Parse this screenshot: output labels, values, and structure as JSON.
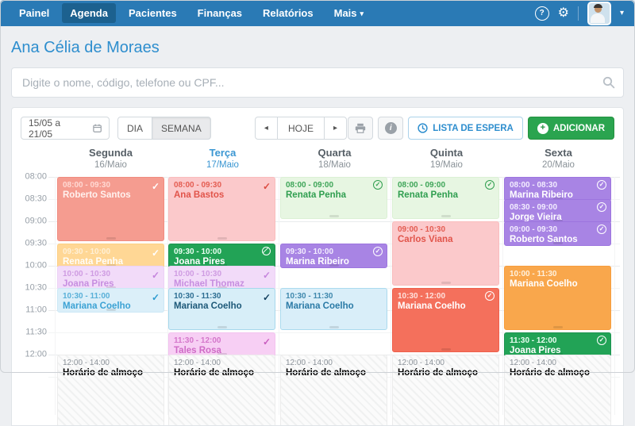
{
  "navbar": {
    "items": [
      {
        "label": "Painel",
        "active": false
      },
      {
        "label": "Agenda",
        "active": true
      },
      {
        "label": "Pacientes",
        "active": false
      },
      {
        "label": "Finanças",
        "active": false
      },
      {
        "label": "Relatórios",
        "active": false
      },
      {
        "label": "Mais",
        "active": false,
        "caret": true
      }
    ],
    "help_icon": "?",
    "gear_icon": "⚙",
    "caret_icon": "▾"
  },
  "page": {
    "title": "Ana Célia de Moraes"
  },
  "search": {
    "placeholder": "Digite o nome, código, telefone ou CPF..."
  },
  "toolbar": {
    "date_range": "15/05 a 21/05",
    "view_day": "DIA",
    "view_week": "SEMANA",
    "prev": "◂",
    "today": "HOJE",
    "next": "▸",
    "info": "i",
    "wait_list": "LISTA DE ESPERA",
    "add": "ADICIONAR",
    "add_plus": "+"
  },
  "colors": {
    "navbar": "#2a7ab5",
    "navbar_active": "#1c618f",
    "title": "#2e8ece",
    "add_button": "#2aa44f",
    "wait_button_text": "#2e8ece",
    "active_day": "#3a96d2"
  },
  "calendar": {
    "times": [
      "08:00",
      "08:30",
      "09:00",
      "09:30",
      "10:00",
      "10:30",
      "11:00",
      "11:30",
      "12:00"
    ],
    "styles": {
      "salmon": {
        "bg": "#f59c90",
        "border": "#f08c80",
        "time": "#ffd9d3",
        "name": "#fff2ef",
        "icon": "#ffffff"
      },
      "orangeLight": {
        "bg": "#ffd795",
        "border": "#fccf84",
        "time": "#fff0d6",
        "name": "#fffdf8",
        "icon": "#ffffff"
      },
      "lilac": {
        "bg": "#f2dbf9",
        "border": "#ecd2f6",
        "time": "#cf9ce2",
        "name": "#c78ee0",
        "icon": "#c584dd"
      },
      "blueLight": {
        "bg": "#dbeff9",
        "border": "#cce8f6",
        "time": "#58b0d8",
        "name": "#3ba2d4",
        "icon": "#2d9bd0"
      },
      "pink": {
        "bg": "#fbc9cb",
        "border": "#f9bcbd",
        "time": "#e45d52",
        "name": "#e1544a",
        "icon": "#dc4a40"
      },
      "greenSolid": {
        "bg": "#22a356",
        "border": "#1d9350",
        "time": "#e9ffF2",
        "name": "#ffffff",
        "icon": "#ffffff"
      },
      "blueDark": {
        "bg": "#d7eef8",
        "border": "#a6d8ec",
        "time": "#2c6d92",
        "name": "#1c5878",
        "icon": "#123f5e"
      },
      "magenta": {
        "bg": "#f7cff4",
        "border": "#f3c2ef",
        "time": "#d476ca",
        "name": "#cf6bc6",
        "icon": "#ca5fc0"
      },
      "greenLight": {
        "bg": "#e7f6e2",
        "border": "#dbf0d4",
        "time": "#3ea558",
        "name": "#2f9e4f",
        "icon": "#2f9e4f"
      },
      "purpleSolid": {
        "bg": "#a884e4",
        "border": "#9d75df",
        "time": "#f3edff",
        "name": "#ffffff",
        "icon": "#ffffff"
      },
      "blueMid": {
        "bg": "#d9eef9",
        "border": "#abdaee",
        "time": "#3f88ad",
        "name": "#2a7aa6",
        "icon": "#2a7aa6"
      },
      "coral": {
        "bg": "#f4705c",
        "border": "#ef5f4b",
        "time": "#ffe2dd",
        "name": "#ffffff",
        "icon": "#ffffff"
      },
      "orangeSolid": {
        "bg": "#f9a74c",
        "border": "#f79d3c",
        "time": "#fff1dd",
        "name": "#ffffff",
        "icon": "#ffffff"
      },
      "lunch": {
        "bg": "",
        "border": "#ececec",
        "time": "#8b9299",
        "name": "#64$b72",
        "icon": ""
      }
    },
    "days": [
      {
        "name": "Segunda",
        "date": "16/Maio",
        "active": false,
        "events": [
          {
            "time": "08:00 - 09:30",
            "name": "Roberto Santos",
            "start": "08:00",
            "end": "09:30",
            "style": "salmon",
            "icon": "check"
          },
          {
            "time": "09:30 - 10:00",
            "name": "Renata Penha",
            "start": "09:30",
            "end": "10:00",
            "style": "orangeLight",
            "icon": "check"
          },
          {
            "time": "10:00 - 10:30",
            "name": "Joana Pires",
            "start": "10:00",
            "end": "10:30",
            "style": "lilac",
            "icon": "check"
          },
          {
            "time": "10:30 - 11:00",
            "name": "Mariana Coelho",
            "start": "10:30",
            "end": "11:00",
            "style": "blueLight",
            "icon": "check"
          },
          {
            "time": "12:00 - 14:00",
            "name": "Horário de almoço",
            "start": "12:00",
            "end": "14:00",
            "style": "lunch",
            "icon": ""
          }
        ]
      },
      {
        "name": "Terça",
        "date": "17/Maio",
        "active": true,
        "events": [
          {
            "time": "08:00 - 09:30",
            "name": "Ana Bastos",
            "start": "08:00",
            "end": "09:30",
            "style": "pink",
            "icon": "check"
          },
          {
            "time": "09:30 - 10:00",
            "name": "Joana Pires",
            "start": "09:30",
            "end": "10:00",
            "style": "greenSolid",
            "icon": "slash-circle"
          },
          {
            "time": "10:00 - 10:30",
            "name": "Michael Thomaz",
            "start": "10:00",
            "end": "10:30",
            "style": "lilac",
            "icon": "check"
          },
          {
            "time": "10:30 - 11:30",
            "name": "Mariana Coelho",
            "start": "10:30",
            "end": "11:30",
            "style": "blueDark",
            "icon": "check"
          },
          {
            "time": "11:30 - 12:00",
            "name": "Tales Rosa",
            "start": "11:30",
            "end": "12:00",
            "style": "magenta",
            "icon": "check"
          },
          {
            "time": "12:00 - 14:00",
            "name": "Horário de almoço",
            "start": "12:00",
            "end": "14:00",
            "style": "lunch",
            "icon": ""
          }
        ]
      },
      {
        "name": "Quarta",
        "date": "18/Maio",
        "active": false,
        "events": [
          {
            "time": "08:00 - 09:00",
            "name": "Renata Penha",
            "start": "08:00",
            "end": "09:00",
            "style": "greenLight",
            "icon": "check-circle"
          },
          {
            "time": "09:30 - 10:00",
            "name": "Marina Ribeiro",
            "start": "09:30",
            "end": "10:00",
            "style": "purpleSolid",
            "icon": "check-circle"
          },
          {
            "time": "10:30 - 11:30",
            "name": "Mariana Coelho",
            "start": "10:30",
            "end": "11:30",
            "style": "blueMid",
            "icon": ""
          },
          {
            "time": "12:00 - 14:00",
            "name": "Horário de almoço",
            "start": "12:00",
            "end": "14:00",
            "style": "lunch",
            "icon": ""
          }
        ]
      },
      {
        "name": "Quinta",
        "date": "19/Maio",
        "active": false,
        "events": [
          {
            "time": "08:00 - 09:00",
            "name": "Renata Penha",
            "start": "08:00",
            "end": "09:00",
            "style": "greenLight",
            "icon": "check-circle"
          },
          {
            "time": "09:00 - 10:30",
            "name": "Carlos Viana",
            "start": "09:00",
            "end": "10:30",
            "style": "pink",
            "icon": ""
          },
          {
            "time": "10:30 - 12:00",
            "name": "Mariana Coelho",
            "start": "10:30",
            "end": "12:00",
            "style": "coral",
            "icon": "check-circle"
          },
          {
            "time": "12:00 - 14:00",
            "name": "Horário de almoço",
            "start": "12:00",
            "end": "14:00",
            "style": "lunch",
            "icon": ""
          }
        ]
      },
      {
        "name": "Sexta",
        "date": "20/Maio",
        "active": false,
        "events": [
          {
            "time": "08:00 - 08:30",
            "name": "Marina Ribeiro",
            "start": "08:00",
            "end": "08:30",
            "style": "purpleSolid",
            "icon": "check-circle"
          },
          {
            "time": "08:30 - 09:00",
            "name": "Jorge Vieira",
            "start": "08:30",
            "end": "09:00",
            "style": "purpleSolid",
            "icon": "check-circle"
          },
          {
            "time": "09:00 - 09:30",
            "name": "Roberto Santos",
            "start": "09:00",
            "end": "09:30",
            "style": "purpleSolid",
            "icon": "check-circle"
          },
          {
            "time": "10:00 - 11:30",
            "name": "Mariana Coelho",
            "start": "10:00",
            "end": "11:30",
            "style": "orangeSolid",
            "icon": ""
          },
          {
            "time": "11:30 - 12:00",
            "name": "Joana Pires",
            "start": "11:30",
            "end": "12:00",
            "style": "greenSolid",
            "icon": "check-circle"
          },
          {
            "time": "12:00 - 14:00",
            "name": "Horário de almoço",
            "start": "12:00",
            "end": "14:00",
            "style": "lunch",
            "icon": ""
          }
        ]
      }
    ]
  }
}
